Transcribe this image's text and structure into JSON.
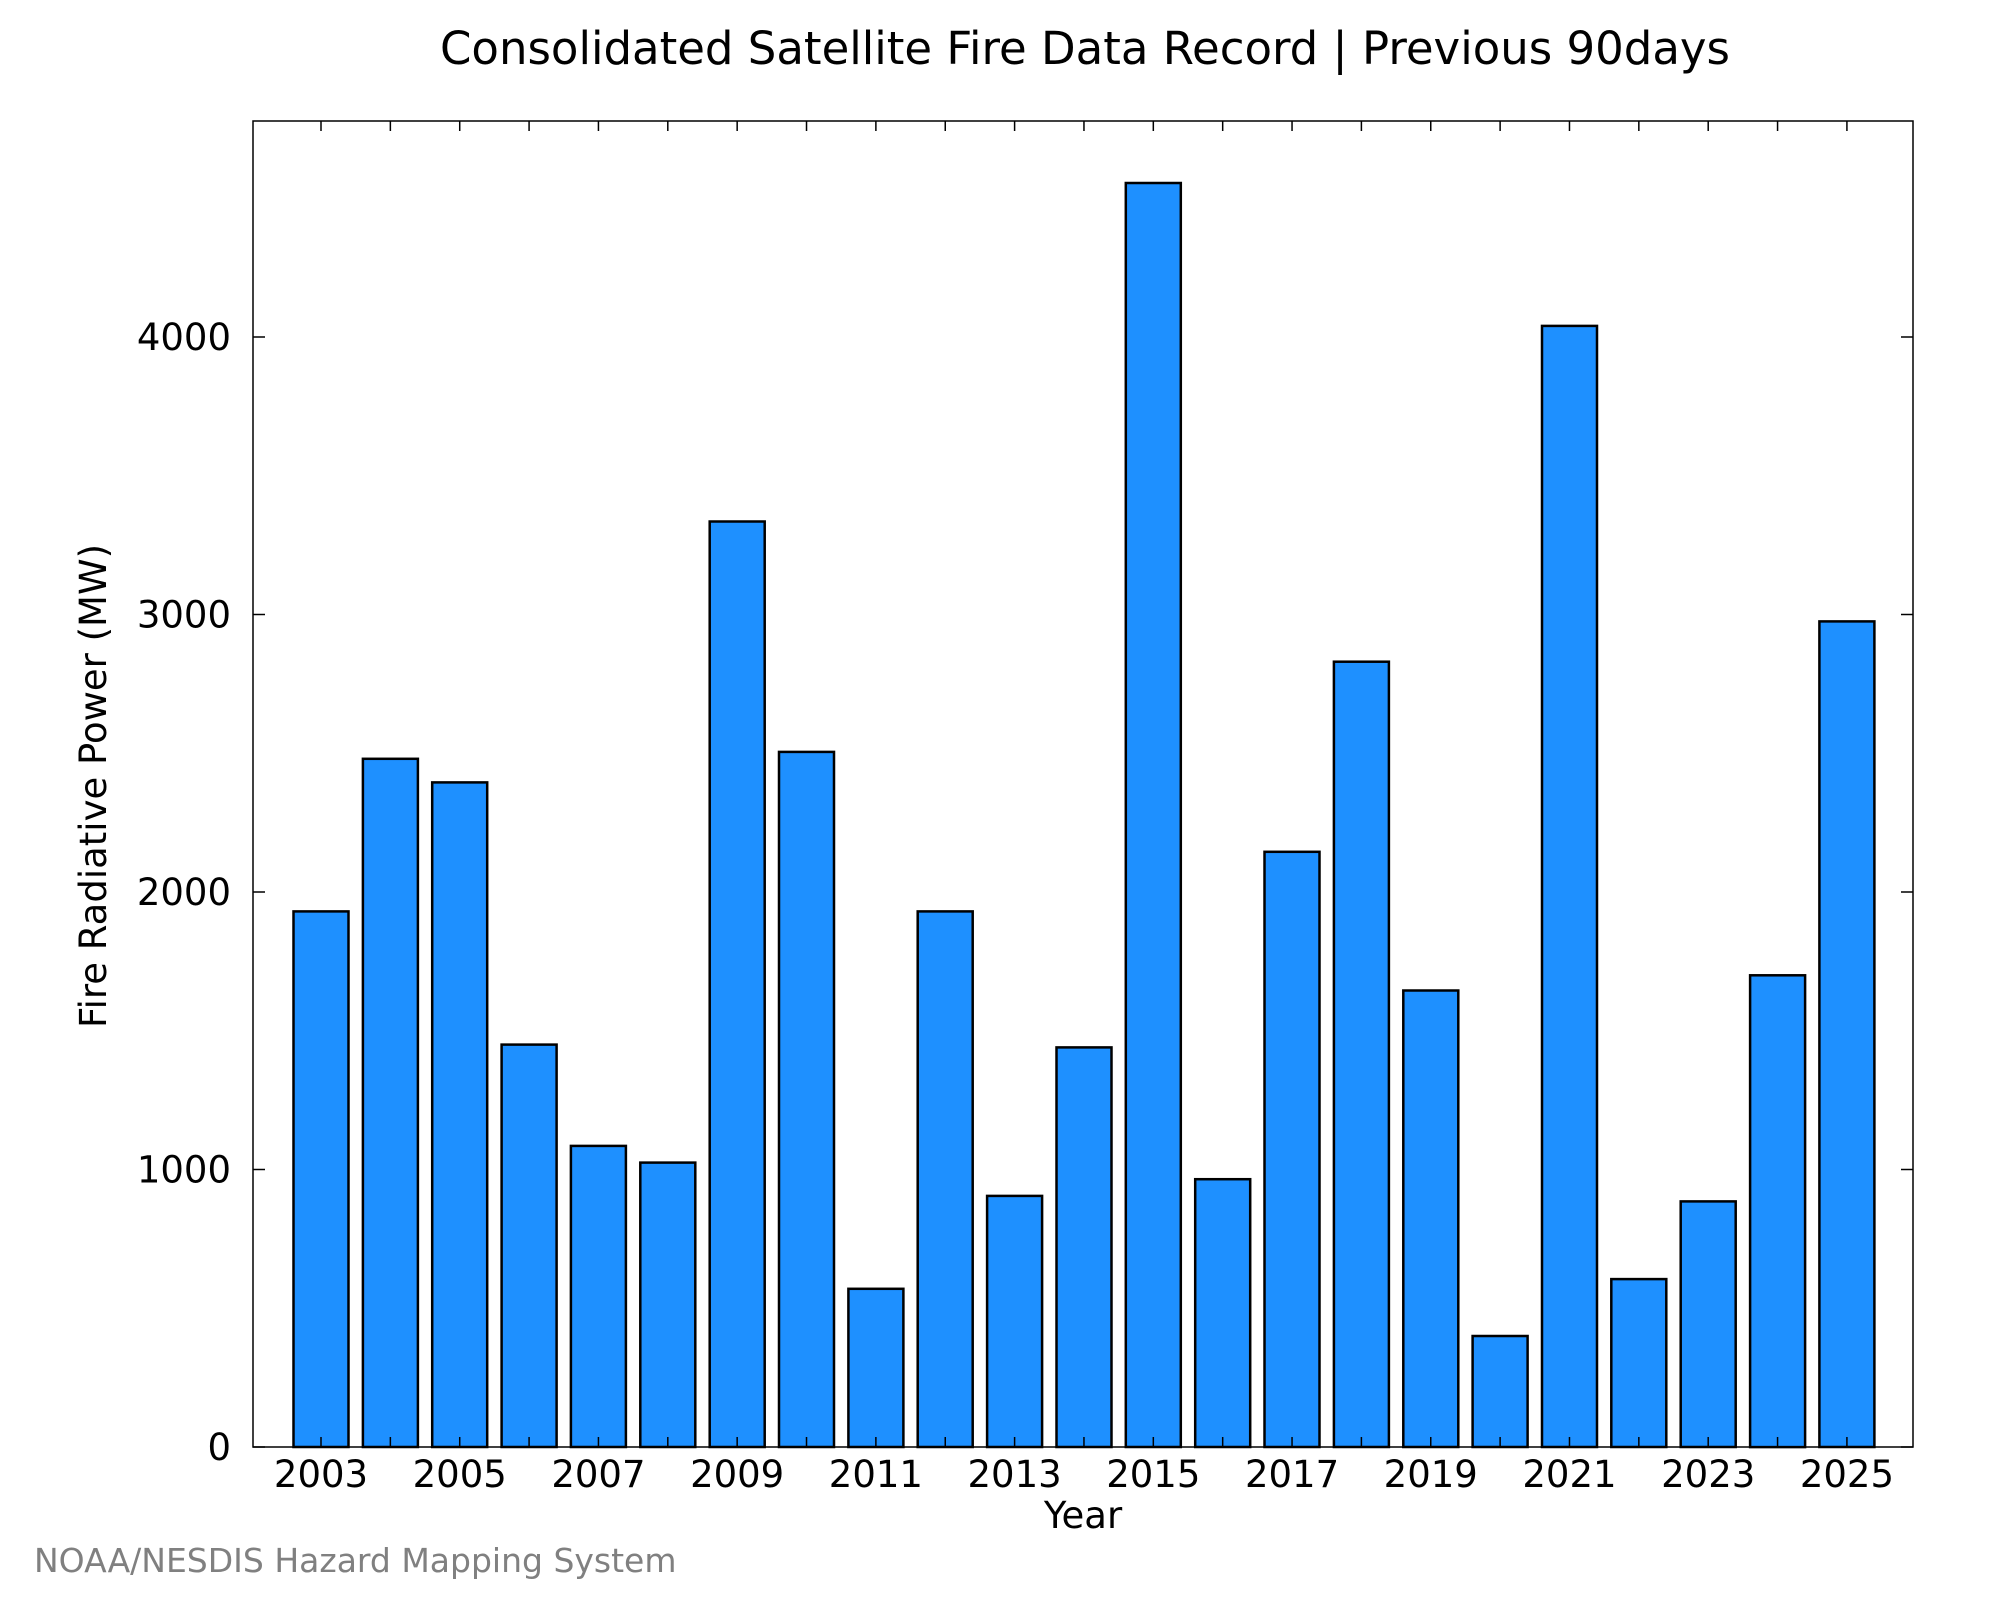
{
  "chart_data": {
    "type": "bar",
    "title": "Consolidated Satellite Fire Data Record | Previous 90days",
    "xlabel": "Year",
    "ylabel": "Fire Radiative Power (MW)",
    "categories": [
      "2003",
      "2004",
      "2005",
      "2006",
      "2007",
      "2008",
      "2009",
      "2010",
      "2011",
      "2012",
      "2013",
      "2014",
      "2015",
      "2016",
      "2017",
      "2018",
      "2019",
      "2020",
      "2021",
      "2022",
      "2023",
      "2024",
      "2025"
    ],
    "values": [
      1930,
      2480,
      2395,
      1450,
      1085,
      1025,
      3335,
      2505,
      570,
      1930,
      905,
      1440,
      4555,
      965,
      2145,
      2830,
      1645,
      400,
      4040,
      605,
      885,
      1700,
      2975
    ],
    "x_tick_labels": [
      "2003",
      "2005",
      "2007",
      "2009",
      "2011",
      "2013",
      "2015",
      "2017",
      "2019",
      "2021",
      "2023",
      "2025"
    ],
    "y_tick_labels": [
      "0",
      "1000",
      "2000",
      "3000",
      "4000"
    ],
    "y_ticks": [
      0,
      1000,
      2000,
      3000,
      4000
    ],
    "ylim": [
      0,
      4800
    ],
    "grid": false,
    "bar_color": "#1e90ff",
    "bar_edge_color": "#000000"
  },
  "credit": "NOAA/NESDIS Hazard Mapping System"
}
